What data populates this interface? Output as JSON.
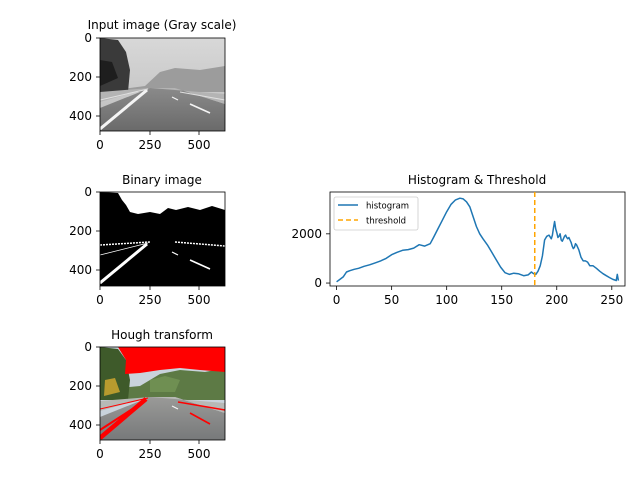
{
  "colors": {
    "histogram": "#1f77b4",
    "threshold": "#ffa500",
    "hough_lines": "#ff0000",
    "axes": "#000000"
  },
  "chart_data": [
    {
      "type": "image",
      "title": "Input image (Gray scale)",
      "content": "grayscale road photo",
      "xticks": [
        "0",
        "250",
        "500"
      ],
      "yticks": [
        "0",
        "200",
        "400"
      ],
      "xlim": [
        0,
        630
      ],
      "ylim": [
        480,
        0
      ]
    },
    {
      "type": "image",
      "title": "Binary image",
      "content": "black and white thresholded road photo",
      "xticks": [
        "0",
        "250",
        "500"
      ],
      "yticks": [
        "0",
        "200",
        "400"
      ],
      "xlim": [
        0,
        630
      ],
      "ylim": [
        480,
        0
      ]
    },
    {
      "type": "line",
      "title": "Histogram & Threshold",
      "xlim": [
        -6,
        262
      ],
      "ylim": [
        -120,
        3700
      ],
      "xticks": [
        "0",
        "50",
        "100",
        "150",
        "200",
        "250"
      ],
      "xtick_values": [
        0,
        50,
        100,
        150,
        200,
        250
      ],
      "yticks": [
        "0",
        "2000"
      ],
      "ytick_values": [
        0,
        2000
      ],
      "grid": false,
      "legend_position": "upper-left",
      "series": [
        {
          "name": "histogram",
          "style": "solid",
          "x": [
            0,
            3,
            6,
            9,
            12,
            16,
            20,
            25,
            30,
            35,
            40,
            45,
            50,
            55,
            60,
            65,
            70,
            75,
            80,
            85,
            88,
            92,
            96,
            100,
            104,
            108,
            112,
            115,
            118,
            121,
            124,
            127,
            130,
            133,
            137,
            141,
            145,
            149,
            153,
            157,
            161,
            165,
            170,
            174,
            177,
            179,
            181,
            183,
            185,
            187,
            189,
            191,
            193,
            195,
            196,
            197,
            198,
            199,
            200,
            201,
            202,
            203,
            204,
            205,
            206,
            207,
            208,
            209,
            210,
            211,
            212,
            213,
            214,
            215,
            216,
            217,
            218,
            220,
            222,
            224,
            226,
            228,
            230,
            233,
            236,
            239,
            242,
            245,
            248,
            251,
            253,
            254,
            255,
            256
          ],
          "y": [
            50,
            150,
            250,
            450,
            500,
            560,
            600,
            680,
            740,
            820,
            900,
            1000,
            1150,
            1250,
            1330,
            1360,
            1420,
            1560,
            1500,
            1600,
            1850,
            2200,
            2550,
            2900,
            3200,
            3380,
            3450,
            3420,
            3300,
            3100,
            2700,
            2300,
            2000,
            1800,
            1550,
            1250,
            950,
            650,
            420,
            350,
            400,
            380,
            300,
            330,
            450,
            380,
            350,
            480,
            700,
            1100,
            1750,
            1900,
            1950,
            1800,
            1950,
            2250,
            2500,
            2200,
            2050,
            1850,
            1900,
            2000,
            1750,
            1700,
            1800,
            1900,
            1950,
            1850,
            1800,
            1850,
            1750,
            1650,
            1500,
            1400,
            1450,
            1600,
            1550,
            1350,
            1050,
            900,
            900,
            850,
            700,
            700,
            600,
            480,
            380,
            300,
            220,
            150,
            120,
            100,
            350,
            100
          ]
        },
        {
          "name": "threshold",
          "style": "dashed",
          "type": "vline",
          "x": 180
        }
      ]
    },
    {
      "type": "image",
      "title": "Hough transform",
      "content": "color road photo with red Hough lines overlaid",
      "xticks": [
        "0",
        "250",
        "500"
      ],
      "yticks": [
        "0",
        "200",
        "400"
      ],
      "xlim": [
        0,
        630
      ],
      "ylim": [
        480,
        0
      ]
    }
  ]
}
